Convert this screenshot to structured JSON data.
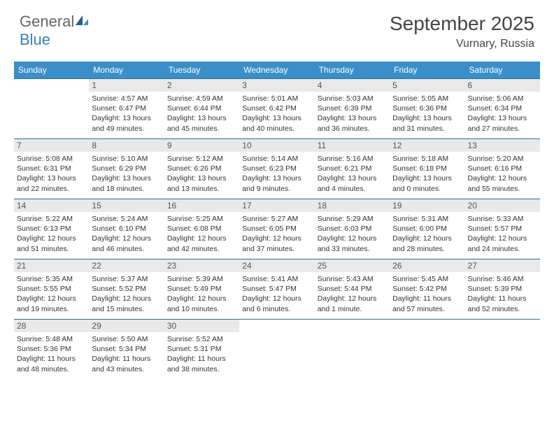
{
  "logo": {
    "text_general": "General",
    "text_blue": "Blue"
  },
  "header": {
    "title": "September 2025",
    "location": "Vurnary, Russia"
  },
  "colors": {
    "header_bg": "#3a8fc8",
    "header_fg": "#ffffff",
    "dayhead_bg": "#e9e9e9",
    "rule": "#2a6fa0",
    "text": "#333333",
    "logo_gray": "#666666",
    "logo_blue": "#3a7fb8",
    "page_bg": "#ffffff"
  },
  "typography": {
    "title_fontsize": 28,
    "location_fontsize": 16,
    "weekday_fontsize": 12,
    "daynum_fontsize": 12,
    "body_fontsize": 10.5
  },
  "weekdays": [
    "Sunday",
    "Monday",
    "Tuesday",
    "Wednesday",
    "Thursday",
    "Friday",
    "Saturday"
  ],
  "weeks": [
    [
      null,
      {
        "n": "1",
        "sr": "Sunrise: 4:57 AM",
        "ss": "Sunset: 6:47 PM",
        "d1": "Daylight: 13 hours",
        "d2": "and 49 minutes."
      },
      {
        "n": "2",
        "sr": "Sunrise: 4:59 AM",
        "ss": "Sunset: 6:44 PM",
        "d1": "Daylight: 13 hours",
        "d2": "and 45 minutes."
      },
      {
        "n": "3",
        "sr": "Sunrise: 5:01 AM",
        "ss": "Sunset: 6:42 PM",
        "d1": "Daylight: 13 hours",
        "d2": "and 40 minutes."
      },
      {
        "n": "4",
        "sr": "Sunrise: 5:03 AM",
        "ss": "Sunset: 6:39 PM",
        "d1": "Daylight: 13 hours",
        "d2": "and 36 minutes."
      },
      {
        "n": "5",
        "sr": "Sunrise: 5:05 AM",
        "ss": "Sunset: 6:36 PM",
        "d1": "Daylight: 13 hours",
        "d2": "and 31 minutes."
      },
      {
        "n": "6",
        "sr": "Sunrise: 5:06 AM",
        "ss": "Sunset: 6:34 PM",
        "d1": "Daylight: 13 hours",
        "d2": "and 27 minutes."
      }
    ],
    [
      {
        "n": "7",
        "sr": "Sunrise: 5:08 AM",
        "ss": "Sunset: 6:31 PM",
        "d1": "Daylight: 13 hours",
        "d2": "and 22 minutes."
      },
      {
        "n": "8",
        "sr": "Sunrise: 5:10 AM",
        "ss": "Sunset: 6:29 PM",
        "d1": "Daylight: 13 hours",
        "d2": "and 18 minutes."
      },
      {
        "n": "9",
        "sr": "Sunrise: 5:12 AM",
        "ss": "Sunset: 6:26 PM",
        "d1": "Daylight: 13 hours",
        "d2": "and 13 minutes."
      },
      {
        "n": "10",
        "sr": "Sunrise: 5:14 AM",
        "ss": "Sunset: 6:23 PM",
        "d1": "Daylight: 13 hours",
        "d2": "and 9 minutes."
      },
      {
        "n": "11",
        "sr": "Sunrise: 5:16 AM",
        "ss": "Sunset: 6:21 PM",
        "d1": "Daylight: 13 hours",
        "d2": "and 4 minutes."
      },
      {
        "n": "12",
        "sr": "Sunrise: 5:18 AM",
        "ss": "Sunset: 6:18 PM",
        "d1": "Daylight: 13 hours",
        "d2": "and 0 minutes."
      },
      {
        "n": "13",
        "sr": "Sunrise: 5:20 AM",
        "ss": "Sunset: 6:16 PM",
        "d1": "Daylight: 12 hours",
        "d2": "and 55 minutes."
      }
    ],
    [
      {
        "n": "14",
        "sr": "Sunrise: 5:22 AM",
        "ss": "Sunset: 6:13 PM",
        "d1": "Daylight: 12 hours",
        "d2": "and 51 minutes."
      },
      {
        "n": "15",
        "sr": "Sunrise: 5:24 AM",
        "ss": "Sunset: 6:10 PM",
        "d1": "Daylight: 12 hours",
        "d2": "and 46 minutes."
      },
      {
        "n": "16",
        "sr": "Sunrise: 5:25 AM",
        "ss": "Sunset: 6:08 PM",
        "d1": "Daylight: 12 hours",
        "d2": "and 42 minutes."
      },
      {
        "n": "17",
        "sr": "Sunrise: 5:27 AM",
        "ss": "Sunset: 6:05 PM",
        "d1": "Daylight: 12 hours",
        "d2": "and 37 minutes."
      },
      {
        "n": "18",
        "sr": "Sunrise: 5:29 AM",
        "ss": "Sunset: 6:03 PM",
        "d1": "Daylight: 12 hours",
        "d2": "and 33 minutes."
      },
      {
        "n": "19",
        "sr": "Sunrise: 5:31 AM",
        "ss": "Sunset: 6:00 PM",
        "d1": "Daylight: 12 hours",
        "d2": "and 28 minutes."
      },
      {
        "n": "20",
        "sr": "Sunrise: 5:33 AM",
        "ss": "Sunset: 5:57 PM",
        "d1": "Daylight: 12 hours",
        "d2": "and 24 minutes."
      }
    ],
    [
      {
        "n": "21",
        "sr": "Sunrise: 5:35 AM",
        "ss": "Sunset: 5:55 PM",
        "d1": "Daylight: 12 hours",
        "d2": "and 19 minutes."
      },
      {
        "n": "22",
        "sr": "Sunrise: 5:37 AM",
        "ss": "Sunset: 5:52 PM",
        "d1": "Daylight: 12 hours",
        "d2": "and 15 minutes."
      },
      {
        "n": "23",
        "sr": "Sunrise: 5:39 AM",
        "ss": "Sunset: 5:49 PM",
        "d1": "Daylight: 12 hours",
        "d2": "and 10 minutes."
      },
      {
        "n": "24",
        "sr": "Sunrise: 5:41 AM",
        "ss": "Sunset: 5:47 PM",
        "d1": "Daylight: 12 hours",
        "d2": "and 6 minutes."
      },
      {
        "n": "25",
        "sr": "Sunrise: 5:43 AM",
        "ss": "Sunset: 5:44 PM",
        "d1": "Daylight: 12 hours",
        "d2": "and 1 minute."
      },
      {
        "n": "26",
        "sr": "Sunrise: 5:45 AM",
        "ss": "Sunset: 5:42 PM",
        "d1": "Daylight: 11 hours",
        "d2": "and 57 minutes."
      },
      {
        "n": "27",
        "sr": "Sunrise: 5:46 AM",
        "ss": "Sunset: 5:39 PM",
        "d1": "Daylight: 11 hours",
        "d2": "and 52 minutes."
      }
    ],
    [
      {
        "n": "28",
        "sr": "Sunrise: 5:48 AM",
        "ss": "Sunset: 5:36 PM",
        "d1": "Daylight: 11 hours",
        "d2": "and 48 minutes."
      },
      {
        "n": "29",
        "sr": "Sunrise: 5:50 AM",
        "ss": "Sunset: 5:34 PM",
        "d1": "Daylight: 11 hours",
        "d2": "and 43 minutes."
      },
      {
        "n": "30",
        "sr": "Sunrise: 5:52 AM",
        "ss": "Sunset: 5:31 PM",
        "d1": "Daylight: 11 hours",
        "d2": "and 38 minutes."
      },
      null,
      null,
      null,
      null
    ]
  ]
}
